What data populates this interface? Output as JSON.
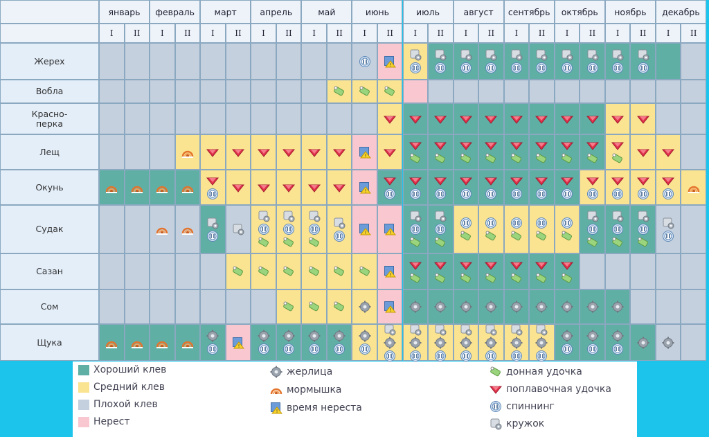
{
  "colors": {
    "good": "#5fafa4",
    "medium": "#fae391",
    "poor": "#c5d0de",
    "spawn": "#f9c7cf"
  },
  "months": [
    "январь",
    "февраль",
    "март",
    "апрель",
    "май",
    "июнь",
    "июль",
    "август",
    "сентябрь",
    "октябрь",
    "ноябрь",
    "декабрь"
  ],
  "halves": [
    "I",
    "II"
  ],
  "fish": [
    {
      "name": "Жерех",
      "status": [
        "P",
        "P",
        "P",
        "P",
        "P",
        "P",
        "P",
        "P",
        "P",
        "P",
        "P",
        "P",
        "P",
        "P",
        "P",
        "P",
        "P",
        "P",
        "P",
        "P",
        "P",
        "P",
        "P",
        "P"
      ],
      "icons": [
        [],
        [],
        [],
        [],
        [],
        [],
        [],
        [],
        [],
        [],
        [],
        [
          "spin"
        ],
        [],
        [],
        [],
        [],
        [],
        [],
        [],
        [],
        [],
        [],
        [],
        []
      ]
    },
    {
      "name": "Вобла",
      "status": [
        "P",
        "P",
        "P",
        "P",
        "P",
        "P",
        "P",
        "P",
        "P",
        "P",
        "P",
        "P",
        "P",
        "P",
        "P",
        "P",
        "P",
        "P",
        "P",
        "P",
        "P",
        "P",
        "P",
        "P"
      ],
      "icons": [
        [],
        [],
        [],
        [],
        [],
        [],
        [],
        [],
        [],
        [],
        [],
        [],
        [],
        [],
        [],
        [],
        [],
        [],
        [],
        [],
        [],
        [],
        [],
        []
      ]
    },
    {
      "name": "Красно-\nперка",
      "status": [
        "P",
        "P",
        "P",
        "P",
        "P",
        "P",
        "P",
        "P",
        "P",
        "P",
        "P",
        "P",
        "P",
        "P",
        "P",
        "P",
        "P",
        "P",
        "P",
        "P",
        "P",
        "P",
        "P",
        "P"
      ],
      "icons": [
        [],
        [],
        [],
        [],
        [],
        [],
        [],
        [],
        [],
        [],
        [],
        [],
        [],
        [],
        [],
        [],
        [],
        [],
        [],
        [],
        [],
        [],
        [],
        []
      ]
    },
    {
      "name": "Лещ",
      "status": [
        "P",
        "P",
        "P",
        "P",
        "P",
        "P",
        "P",
        "P",
        "P",
        "P",
        "P",
        "P",
        "P",
        "P",
        "P",
        "P",
        "P",
        "P",
        "P",
        "P",
        "P",
        "P",
        "P",
        "P"
      ],
      "icons": [
        [],
        [],
        [],
        [],
        [],
        [],
        [],
        [],
        [],
        [],
        [],
        [],
        [],
        [],
        [],
        [],
        [],
        [],
        [],
        [],
        [],
        [],
        [],
        []
      ]
    },
    {
      "name": "Окунь",
      "status": [
        "P",
        "P",
        "P",
        "P",
        "P",
        "P",
        "P",
        "P",
        "P",
        "P",
        "P",
        "P",
        "P",
        "P",
        "P",
        "P",
        "P",
        "P",
        "P",
        "P",
        "P",
        "P",
        "P",
        "P"
      ],
      "icons": [
        [],
        [],
        [],
        [],
        [],
        [],
        [],
        [],
        [],
        [],
        [],
        [],
        [],
        [],
        [],
        [],
        [],
        [],
        [],
        [],
        [],
        [],
        [],
        []
      ]
    },
    {
      "name": "Судак",
      "status": [
        "P",
        "P",
        "P",
        "P",
        "P",
        "P",
        "P",
        "P",
        "P",
        "P",
        "P",
        "P",
        "P",
        "P",
        "P",
        "P",
        "P",
        "P",
        "P",
        "P",
        "P",
        "P",
        "P",
        "P"
      ],
      "icons": [
        [],
        [],
        [],
        [],
        [],
        [],
        [],
        [],
        [],
        [],
        [],
        [],
        [],
        [],
        [],
        [],
        [],
        [],
        [],
        [],
        [],
        [],
        [],
        []
      ]
    },
    {
      "name": "Сазан",
      "status": [
        "P",
        "P",
        "P",
        "P",
        "P",
        "P",
        "P",
        "P",
        "P",
        "P",
        "P",
        "P",
        "P",
        "P",
        "P",
        "P",
        "P",
        "P",
        "P",
        "P",
        "P",
        "P",
        "P",
        "P"
      ],
      "icons": [
        [],
        [],
        [],
        [],
        [],
        [],
        [],
        [],
        [],
        [],
        [],
        [],
        [],
        [],
        [],
        [],
        [],
        [],
        [],
        [],
        [],
        [],
        [],
        []
      ]
    },
    {
      "name": "Сом",
      "status": [
        "P",
        "P",
        "P",
        "P",
        "P",
        "P",
        "P",
        "P",
        "P",
        "P",
        "P",
        "P",
        "P",
        "P",
        "P",
        "P",
        "P",
        "P",
        "P",
        "P",
        "P",
        "P",
        "P",
        "P"
      ],
      "icons": [
        [],
        [],
        [],
        [],
        [],
        [],
        [],
        [],
        [],
        [],
        [],
        [],
        [],
        [],
        [],
        [],
        [],
        [],
        [],
        [],
        [],
        [],
        [],
        []
      ]
    },
    {
      "name": "Щука",
      "status": [
        "P",
        "P",
        "P",
        "P",
        "P",
        "P",
        "P",
        "P",
        "P",
        "P",
        "P",
        "P",
        "P",
        "P",
        "P",
        "P",
        "P",
        "P",
        "P",
        "P",
        "P",
        "P",
        "P",
        "P"
      ],
      "icons": [
        [],
        [],
        [],
        [],
        [],
        [],
        [],
        [],
        [],
        [],
        [],
        [],
        [],
        [],
        [],
        [],
        [],
        [],
        [],
        [],
        [],
        [],
        [],
        []
      ]
    }
  ],
  "legend": {
    "statuses": [
      {
        "key": "G",
        "label": "Хороший клев"
      },
      {
        "key": "M",
        "label": "Средний клев"
      },
      {
        "key": "P",
        "label": "Плохой клев"
      },
      {
        "key": "S",
        "label": "Нерест"
      }
    ],
    "icons_col1": [
      {
        "icon": "zher",
        "label": "жерлица"
      },
      {
        "icon": "mor",
        "label": "мормышка"
      },
      {
        "icon": "spawn",
        "label": "время нереста"
      }
    ],
    "icons_col2": [
      {
        "icon": "don",
        "label": "донная удочка"
      },
      {
        "icon": "plav",
        "label": "поплавочная удочка"
      },
      {
        "icon": "spin",
        "label": "спиннинг"
      },
      {
        "icon": "kruzh",
        "label": "кружок"
      }
    ]
  }
}
